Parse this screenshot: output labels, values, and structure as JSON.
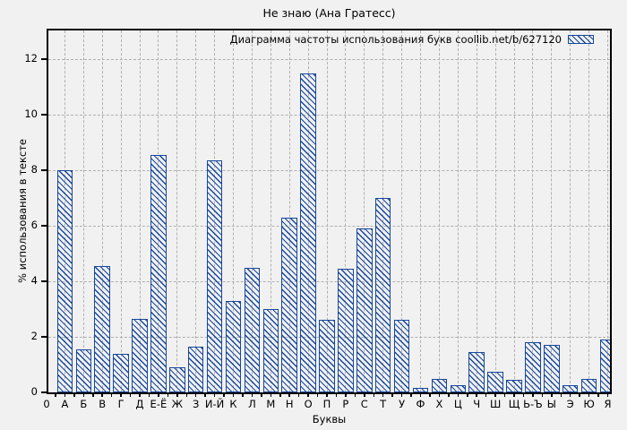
{
  "page": {
    "background": "#f1f1f1"
  },
  "chart_data": {
    "type": "bar",
    "title": "Не знаю (Ана Гратесс)",
    "legend": {
      "label": "Диаграмма частоты использования букв coollib.net/b/627120",
      "position": "top-right-inside",
      "swatch": "blue-hatched-box"
    },
    "xlabel": "Буквы",
    "ylabel": "% использования в тексте",
    "origin_label": "0",
    "categories": [
      "А",
      "Б",
      "В",
      "Г",
      "Д",
      "Е-Ё",
      "Ж",
      "З",
      "И-Й",
      "К",
      "Л",
      "М",
      "Н",
      "О",
      "П",
      "Р",
      "С",
      "Т",
      "У",
      "Ф",
      "Х",
      "Ц",
      "Ч",
      "Ш",
      "Щ",
      "Ь-Ъ",
      "Ы",
      "Э",
      "Ю",
      "Я"
    ],
    "values": [
      8.0,
      1.55,
      4.55,
      1.4,
      2.65,
      8.55,
      0.9,
      1.65,
      8.35,
      3.3,
      4.5,
      3.0,
      6.3,
      11.5,
      2.6,
      4.45,
      5.9,
      7.0,
      2.6,
      0.15,
      0.5,
      0.25,
      1.45,
      0.75,
      0.45,
      1.8,
      1.7,
      0.25,
      0.5,
      1.9
    ],
    "yticks": [
      0,
      2,
      4,
      6,
      8,
      10,
      12
    ],
    "ylim": [
      0,
      13
    ],
    "grid": "both-dashed",
    "hatch": "diagonal-down",
    "colors": {
      "bar": "#17489c",
      "grid": "#b0b0b0",
      "axis": "#000000",
      "background": "#f1f1f1"
    }
  }
}
